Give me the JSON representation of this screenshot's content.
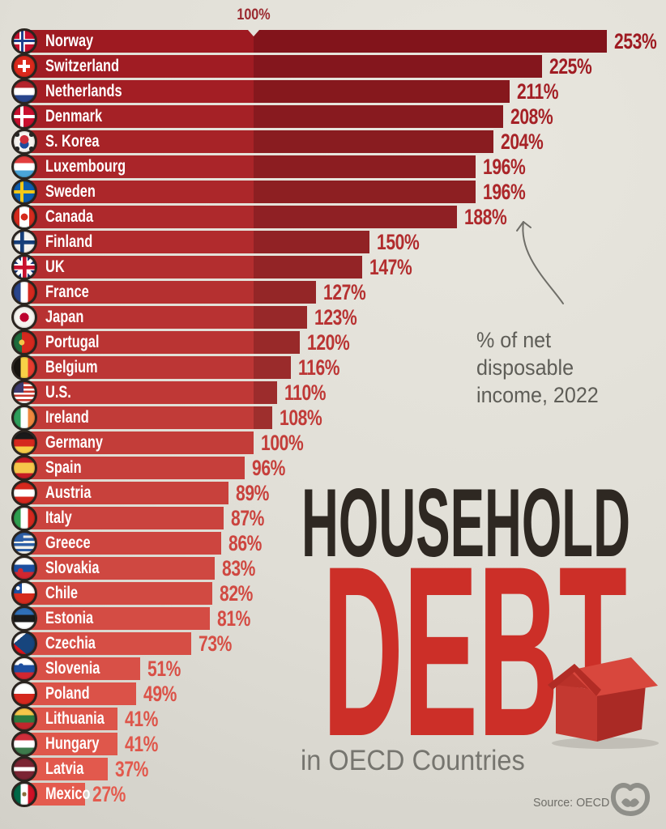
{
  "axis": {
    "top_label": "100%"
  },
  "annotation": {
    "line1": "% of net disposable",
    "line2": "income, 2022"
  },
  "title": {
    "line1": "HOUSEHOLD",
    "line2": "DEBT",
    "subtitle": "in OECD Countries"
  },
  "source": {
    "label": "Source: OECD"
  },
  "colors": {
    "background": "#e0ded6",
    "axis_label": "#9b2a30",
    "bar_top": "#9e1a21",
    "bar_bottom": "#e45b4e",
    "over_100_shade": "rgba(18,0,6,0.20)",
    "title_black": "#2e2822",
    "title_red": "#cc2f28",
    "gray_text": "#5e5d57",
    "subtitle_gray": "#76756f",
    "source_gray": "#6e6d67",
    "logo_gray": "#8f8f89",
    "house_red": "#c43931"
  },
  "chart_data": {
    "type": "bar",
    "orientation": "horizontal",
    "title": "Household Debt in OECD Countries",
    "xlabel": "% of net disposable income, 2022",
    "ylabel": "",
    "xlim": [
      0,
      260
    ],
    "reference_line": 100,
    "grid": false,
    "legend": false,
    "categories": [
      "Norway",
      "Switzerland",
      "Netherlands",
      "Denmark",
      "S. Korea",
      "Luxembourg",
      "Sweden",
      "Canada",
      "Finland",
      "UK",
      "France",
      "Japan",
      "Portugal",
      "Belgium",
      "U.S.",
      "Ireland",
      "Germany",
      "Spain",
      "Austria",
      "Italy",
      "Greece",
      "Slovakia",
      "Chile",
      "Estonia",
      "Czechia",
      "Slovenia",
      "Poland",
      "Lithuania",
      "Hungary",
      "Latvia",
      "Mexico"
    ],
    "values": [
      253,
      225,
      211,
      208,
      204,
      196,
      196,
      188,
      150,
      147,
      127,
      123,
      120,
      116,
      110,
      108,
      100,
      96,
      89,
      87,
      86,
      83,
      82,
      81,
      73,
      51,
      49,
      41,
      41,
      37,
      27
    ]
  },
  "countries": [
    {
      "name": "Norway",
      "value": 253,
      "flag": "linear-gradient(#20418f,#20418f) 40% 0/12% 100% no-repeat, linear-gradient(#20418f,#20418f) 0 50%/100% 12% no-repeat, linear-gradient(#fff,#fff) 38% 0/26% 100% no-repeat, linear-gradient(#fff,#fff) 0 50%/100% 26% no-repeat, #c8102e"
    },
    {
      "name": "Switzerland",
      "value": 225,
      "flag": "linear-gradient(#fff,#fff) 50% 50%/16% 58% no-repeat, linear-gradient(#fff,#fff) 50% 50%/58% 16% no-repeat, #da291c"
    },
    {
      "name": "Netherlands",
      "value": 211,
      "flag": "linear-gradient(180deg, #b5242c 33%, #fff 33%, #fff 67%, #28458c 67%)"
    },
    {
      "name": "Denmark",
      "value": 208,
      "flag": "linear-gradient(#fff,#fff) 38% 0/16% 100% no-repeat, linear-gradient(#fff,#fff) 0 50%/100% 16% no-repeat, #c8102e"
    },
    {
      "name": "S. Korea",
      "value": 204,
      "flag": "radial-gradient(circle at 50% 40%, #cd2e3a 26%, transparent 27%), radial-gradient(circle at 50% 62%, #1e4c9e 26%, transparent 27%), radial-gradient(circle at 16% 16%, #2b2b2b 9%, transparent 10%), radial-gradient(circle at 84% 16%, #2b2b2b 9%, transparent 10%), radial-gradient(circle at 16% 84%, #2b2b2b 9%, transparent 10%), radial-gradient(circle at 84% 84%, #2b2b2b 9%, transparent 10%), #f5f3ef"
    },
    {
      "name": "Luxembourg",
      "value": 196,
      "flag": "linear-gradient(180deg, #e23d3d 33%, #fff 33%, #fff 67%, #4aa5d8 67%)"
    },
    {
      "name": "Sweden",
      "value": 196,
      "flag": "linear-gradient(#f4c918,#f4c918) 38% 0/16% 100% no-repeat, linear-gradient(#f4c918,#f4c918) 0 50%/100% 16% no-repeat, #0d5eaf"
    },
    {
      "name": "Canada",
      "value": 188,
      "flag": "radial-gradient(circle at 50% 50%, #d52b1e 23%, transparent 24%), linear-gradient(90deg, #d52b1e 26%, #fff 26%, #fff 74%, #d52b1e 74%)"
    },
    {
      "name": "Finland",
      "value": 150,
      "flag": "linear-gradient(#173f7a,#173f7a) 38% 0/18% 100% no-repeat, linear-gradient(#173f7a,#173f7a) 0 50%/100% 18% no-repeat, #f5f3ef"
    },
    {
      "name": "UK",
      "value": 147,
      "flag": "linear-gradient(#c8102e,#c8102e) 50% 0/18% 100% no-repeat, linear-gradient(#c8102e,#c8102e) 0 50%/100% 18% no-repeat, linear-gradient(#fff,#fff) 50% 0/32% 100% no-repeat, linear-gradient(#fff,#fff) 0 50%/100% 32% no-repeat, linear-gradient(45deg, transparent 44%, #fff 44%, #fff 56%, transparent 56%), linear-gradient(135deg, transparent 44%, #fff 44%, #fff 56%, transparent 56%), #1f3b7a"
    },
    {
      "name": "France",
      "value": 127,
      "flag": "linear-gradient(90deg, #28458c 33%, #fff 33%, #fff 67%, #d5281e 67%)"
    },
    {
      "name": "Japan",
      "value": 123,
      "flag": "radial-gradient(circle at 50% 50%, #bc002d 30%, transparent 31%), #f5f3ef"
    },
    {
      "name": "Portugal",
      "value": 120,
      "flag": "radial-gradient(circle at 38% 50%, #f3c448 16%, transparent 17%), linear-gradient(90deg, #1d6b3c 38%, #d5281e 38%)"
    },
    {
      "name": "Belgium",
      "value": 116,
      "flag": "linear-gradient(90deg, #17140f 33%, #f8d147 33%, #f8d147 67%, #e63c2f 67%)"
    },
    {
      "name": "U.S.",
      "value": 110,
      "flag": "linear-gradient(#3c3b6e,#3c3b6e) 0 0/48% 50% no-repeat, repeating-linear-gradient(180deg, #c8372d 0 2.6px, #fff 2.6px 5.2px)"
    },
    {
      "name": "Ireland",
      "value": 108,
      "flag": "linear-gradient(90deg, #2e9e5b 33%, #fff 33%, #fff 67%, #f0883e 67%)"
    },
    {
      "name": "Germany",
      "value": 100,
      "flag": "linear-gradient(180deg, #1a1a1a 33%, #d5281e 33%, #d5281e 67%, #f8cc46 67%)"
    },
    {
      "name": "Spain",
      "value": 96,
      "flag": "linear-gradient(180deg, #c61b25 25%, #f6c64a 25%, #f6c64a 75%, #c61b25 75%)"
    },
    {
      "name": "Austria",
      "value": 89,
      "flag": "linear-gradient(180deg, #d5281e 33%, #fff 33%, #fff 67%, #d5281e 67%)"
    },
    {
      "name": "Italy",
      "value": 87,
      "flag": "linear-gradient(90deg, #2f9e4f 33%, #fff 33%, #fff 67%, #d5281e 67%)"
    },
    {
      "name": "Greece",
      "value": 86,
      "flag": "linear-gradient(#2d5fa6,#2d5fa6) left top/45% 44% no-repeat, repeating-linear-gradient(180deg, #2d5fa6 0 3.3px, #f2f0ea 3.3px 6.6px)"
    },
    {
      "name": "Slovakia",
      "value": 83,
      "flag": "radial-gradient(circle at 32% 62%, #d22730 13%, transparent 14%), linear-gradient(180deg, #fff 33%, #1d4fa0 33%, #1d4fa0 67%, #d22730 67%)"
    },
    {
      "name": "Chile",
      "value": 82,
      "flag": "radial-gradient(circle at 20% 25%, #fff 8%, transparent 9%), linear-gradient(#1d4fa0,#1d4fa0) 0 0/40% 50% no-repeat, linear-gradient(180deg, #fff 50%, #d52b1e 50%)"
    },
    {
      "name": "Estonia",
      "value": 81,
      "flag": "linear-gradient(180deg, #2f6fb7 33%, #1a1a1a 33%, #1a1a1a 67%, #fff 67%)"
    },
    {
      "name": "Czechia",
      "value": 73,
      "flag": "conic-gradient(from 50deg at 0% 50%, #17457d 0 80deg, transparent 80deg), linear-gradient(180deg, #fff 50%, #d7141a 50%)"
    },
    {
      "name": "Slovenia",
      "value": 51,
      "flag": "radial-gradient(circle at 34% 36%, #1d4fa0 12%, transparent 13%), linear-gradient(180deg, #fff 33%, #1d4fa0 33%, #1d4fa0 67%, #d22730 67%)"
    },
    {
      "name": "Poland",
      "value": 49,
      "flag": "linear-gradient(180deg, #fff 50%, #d5281e 50%)"
    },
    {
      "name": "Lithuania",
      "value": 41,
      "flag": "linear-gradient(180deg, #f6c64a 33%, #2c7a3f 33%, #2c7a3f 67%, #c1272d 67%)"
    },
    {
      "name": "Hungary",
      "value": 41,
      "flag": "linear-gradient(180deg, #cf2e3b 33%, #fff 33%, #fff 67%, #3e7a4c 67%)"
    },
    {
      "name": "Latvia",
      "value": 37,
      "flag": "linear-gradient(180deg, #7b2433 40%, #fff 40%, #fff 60%, #7b2433 60%)"
    },
    {
      "name": "Mexico",
      "value": 27,
      "flag": "radial-gradient(circle at 50% 50%, #8a6d3b 14%, transparent 15%), linear-gradient(90deg, #006847 33%, #fff 33%, #fff 67%, #ce1126 67%)"
    }
  ]
}
